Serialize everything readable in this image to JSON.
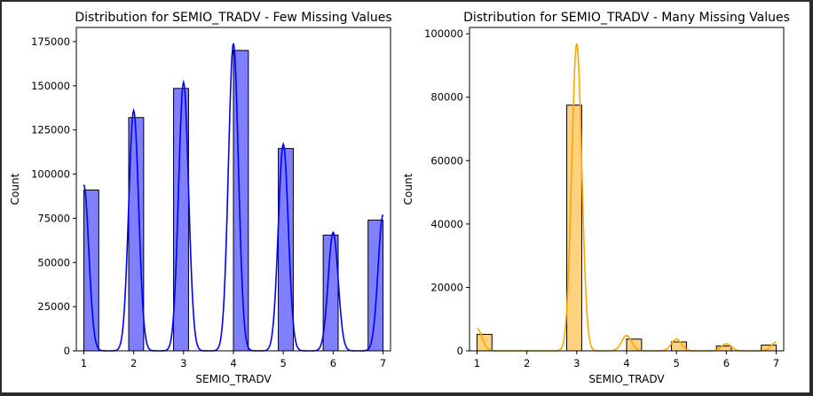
{
  "chart_data": [
    {
      "type": "histogram",
      "title": "Distribution for SEMIO_TRADV - Few Missing Values",
      "xlabel": "SEMIO_TRADV",
      "ylabel": "Count",
      "xlim": [
        0.85,
        7.15
      ],
      "ylim": [
        0,
        183000
      ],
      "xticks": [
        1,
        2,
        3,
        4,
        5,
        6,
        7
      ],
      "yticks": [
        0,
        25000,
        50000,
        75000,
        100000,
        125000,
        150000,
        175000
      ],
      "ytick_labels": [
        "0",
        "25000",
        "50000",
        "75000",
        "100000",
        "125000",
        "150000",
        "175000"
      ],
      "bins": [
        {
          "x0": 1.0,
          "x1": 1.3,
          "count": 91000
        },
        {
          "x0": 1.3,
          "x1": 1.6,
          "count": 0
        },
        {
          "x0": 1.6,
          "x1": 1.9,
          "count": 0
        },
        {
          "x0": 1.9,
          "x1": 2.2,
          "count": 132000
        },
        {
          "x0": 2.2,
          "x1": 2.5,
          "count": 0
        },
        {
          "x0": 2.5,
          "x1": 2.8,
          "count": 0
        },
        {
          "x0": 2.8,
          "x1": 3.1,
          "count": 148500
        },
        {
          "x0": 3.1,
          "x1": 3.4,
          "count": 0
        },
        {
          "x0": 3.4,
          "x1": 3.7,
          "count": 0
        },
        {
          "x0": 3.7,
          "x1": 4.0,
          "count": 0
        },
        {
          "x0": 4.0,
          "x1": 4.3,
          "count": 170000
        },
        {
          "x0": 4.3,
          "x1": 4.6,
          "count": 0
        },
        {
          "x0": 4.6,
          "x1": 4.9,
          "count": 0
        },
        {
          "x0": 4.9,
          "x1": 5.2,
          "count": 114500
        },
        {
          "x0": 5.2,
          "x1": 5.5,
          "count": 0
        },
        {
          "x0": 5.5,
          "x1": 5.8,
          "count": 0
        },
        {
          "x0": 5.8,
          "x1": 6.1,
          "count": 65500
        },
        {
          "x0": 6.1,
          "x1": 6.4,
          "count": 0
        },
        {
          "x0": 6.4,
          "x1": 6.7,
          "count": 0
        },
        {
          "x0": 6.7,
          "x1": 7.0,
          "count": 74000
        }
      ],
      "kde": {
        "bandwidth": 0.1,
        "peaks": [
          {
            "x": 1.0,
            "y": 94000
          },
          {
            "x": 2.0,
            "y": 136000
          },
          {
            "x": 3.0,
            "y": 152000
          },
          {
            "x": 4.0,
            "y": 174000
          },
          {
            "x": 5.0,
            "y": 117000
          },
          {
            "x": 6.0,
            "y": 67000
          },
          {
            "x": 7.0,
            "y": 77000
          }
        ]
      },
      "color": "#0000ff",
      "bar_fill": "#7f7fff",
      "grid": false
    },
    {
      "type": "histogram",
      "title": "Distribution for SEMIO_TRADV - Many Missing Values",
      "xlabel": "SEMIO_TRADV",
      "ylabel": "Count",
      "xlim": [
        0.85,
        7.15
      ],
      "ylim": [
        0,
        102000
      ],
      "xticks": [
        1,
        2,
        3,
        4,
        5,
        6,
        7
      ],
      "yticks": [
        0,
        20000,
        40000,
        60000,
        80000,
        100000
      ],
      "ytick_labels": [
        "0",
        "20000",
        "40000",
        "60000",
        "80000",
        "100000"
      ],
      "bins": [
        {
          "x0": 1.0,
          "x1": 1.3,
          "count": 5200
        },
        {
          "x0": 1.3,
          "x1": 1.6,
          "count": 0
        },
        {
          "x0": 1.6,
          "x1": 1.9,
          "count": 0
        },
        {
          "x0": 1.9,
          "x1": 2.2,
          "count": 0
        },
        {
          "x0": 2.2,
          "x1": 2.5,
          "count": 0
        },
        {
          "x0": 2.5,
          "x1": 2.8,
          "count": 0
        },
        {
          "x0": 2.8,
          "x1": 3.1,
          "count": 77500
        },
        {
          "x0": 3.1,
          "x1": 3.4,
          "count": 0
        },
        {
          "x0": 3.4,
          "x1": 3.7,
          "count": 0
        },
        {
          "x0": 3.7,
          "x1": 4.0,
          "count": 0
        },
        {
          "x0": 4.0,
          "x1": 4.3,
          "count": 3700
        },
        {
          "x0": 4.3,
          "x1": 4.6,
          "count": 0
        },
        {
          "x0": 4.6,
          "x1": 4.9,
          "count": 0
        },
        {
          "x0": 4.9,
          "x1": 5.2,
          "count": 2800
        },
        {
          "x0": 5.2,
          "x1": 5.5,
          "count": 0
        },
        {
          "x0": 5.5,
          "x1": 5.8,
          "count": 0
        },
        {
          "x0": 5.8,
          "x1": 6.1,
          "count": 1500
        },
        {
          "x0": 6.1,
          "x1": 6.4,
          "count": 0
        },
        {
          "x0": 6.4,
          "x1": 6.7,
          "count": 0
        },
        {
          "x0": 6.7,
          "x1": 7.0,
          "count": 1800
        }
      ],
      "kde": {
        "bandwidth": 0.1,
        "peaks": [
          {
            "x": 1.0,
            "y": 7000
          },
          {
            "x": 3.0,
            "y": 97000
          },
          {
            "x": 4.0,
            "y": 4800
          },
          {
            "x": 5.0,
            "y": 3700
          },
          {
            "x": 6.0,
            "y": 2200
          },
          {
            "x": 7.0,
            "y": 2700
          }
        ]
      },
      "color": "#ffa500",
      "bar_fill": "#ffd27f",
      "grid": false
    }
  ]
}
